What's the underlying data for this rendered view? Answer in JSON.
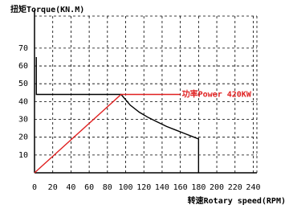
{
  "chart_data": {
    "type": "line",
    "ylabel": "扭矩Torque(KN.M)",
    "xlabel": "转速Rotary speed(RPM)",
    "annotation": "功率Power  420KW",
    "xlim": [
      0,
      244
    ],
    "ylim": [
      0,
      88
    ],
    "xticks": [
      0,
      20,
      40,
      60,
      80,
      100,
      120,
      140,
      160,
      180,
      200,
      220,
      240
    ],
    "yticks": [
      10,
      20,
      30,
      40,
      50,
      60,
      70
    ],
    "grid": true,
    "series": [
      {
        "name": "Torque",
        "color": "#000000",
        "x": [
          2,
          2,
          95,
          105,
          115,
          125,
          135,
          145,
          155,
          165,
          175,
          180,
          180
        ],
        "values": [
          65,
          44,
          44,
          38,
          34,
          31,
          28.5,
          26,
          24,
          22,
          20,
          19,
          0
        ]
      },
      {
        "name": "Power",
        "color": "#e02020",
        "x": [
          0,
          95,
          160
        ],
        "values": [
          0,
          44,
          44
        ]
      }
    ]
  }
}
